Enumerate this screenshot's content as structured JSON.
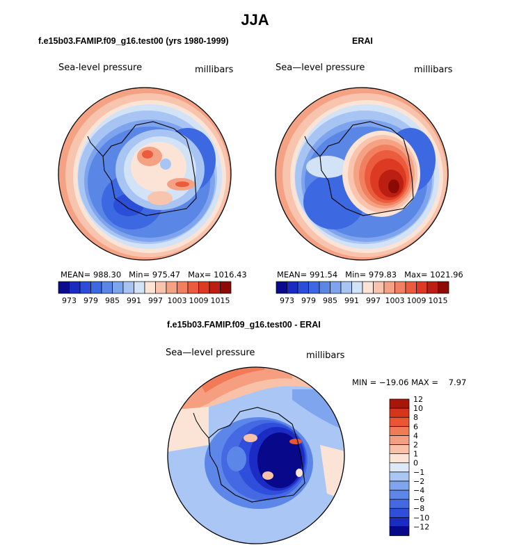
{
  "page": {
    "title": "JJA"
  },
  "panels": [
    {
      "id": "model",
      "title": "f.e15b03.FAMIP.f09_g16.test00 (yrs 1980-1999)",
      "variable": "Sea-level pressure",
      "units": "millibars",
      "stats": {
        "mean_label": "MEAN=",
        "mean": "988.30",
        "min_label": "Min=",
        "min": "975.47",
        "max_label": "Max=",
        "max": "1016.43"
      }
    },
    {
      "id": "obs",
      "title": "ERAI",
      "variable": "Sea—level pressure",
      "units": "millibars",
      "stats": {
        "mean_label": "MEAN=",
        "mean": "991.54",
        "min_label": "Min=",
        "min": "979.83",
        "max_label": "Max=",
        "max": "1021.96"
      }
    },
    {
      "id": "diff",
      "title": "f.e15b03.FAMIP.f09_g16.test00 - ERAI",
      "variable": "Sea—level pressure",
      "units": "millibars",
      "stats_line": "MIN = −19.06 MAX =    7.97"
    }
  ],
  "abs_colorbar": {
    "colors": [
      "#0a0a8c",
      "#1a2cc0",
      "#2a4ed8",
      "#3c68e2",
      "#5a86e6",
      "#7fa4ee",
      "#a8c4f2",
      "#d2e2f7",
      "#fbe3d6",
      "#f8c4ad",
      "#f4a283",
      "#f0805f",
      "#ea5c3d",
      "#dc3a22",
      "#bc1e12",
      "#8c0a06"
    ],
    "ticks": [
      "973",
      "979",
      "985",
      "991",
      "997",
      "1003",
      "1009",
      "1015"
    ]
  },
  "diff_colorbar": {
    "colors": [
      "#08088a",
      "#1a2cc4",
      "#2f4edb",
      "#4469e2",
      "#5c86e8",
      "#7ea5ee",
      "#a9c6f4",
      "#dde9f8",
      "#fbe3d6",
      "#f8c1a8",
      "#f59f80",
      "#f07b56",
      "#ea5533",
      "#d7351a",
      "#a81608"
    ],
    "ticks": [
      "−12",
      "−10",
      "−8",
      "−6",
      "−4",
      "−2",
      "−1",
      "0",
      "1",
      "2",
      "4",
      "6",
      "8",
      "10",
      "12"
    ]
  },
  "map_colors": {
    "outer_warm": "#f6b79a",
    "mid_pale": "#d2e2f7",
    "blue": "#5a86e6",
    "deep_blue": "#2a4ed8",
    "high_red": "#dc3a22",
    "coast": "#000000"
  }
}
